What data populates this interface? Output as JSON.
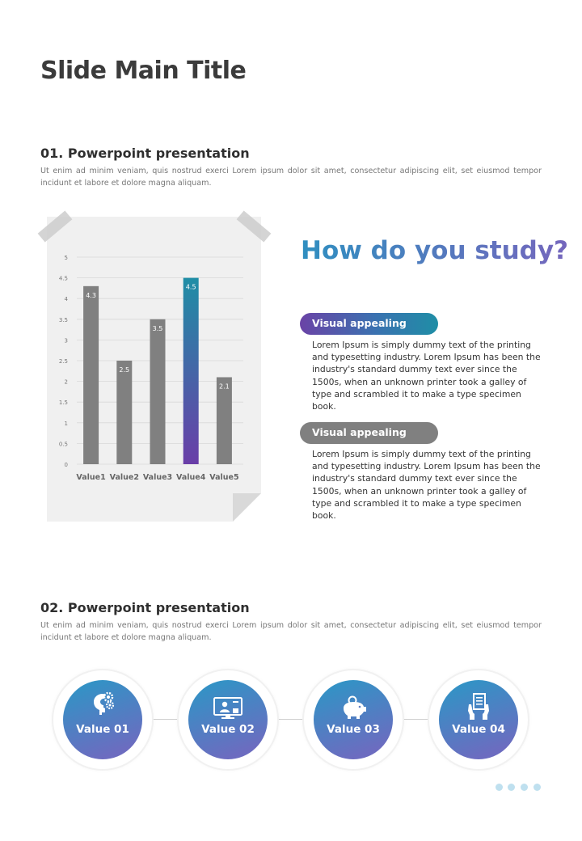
{
  "slide": {
    "title": "Slide Main Title"
  },
  "section1": {
    "title": "01. Powerpoint presentation",
    "body": "Ut enim ad minim veniam, quis nostrud exerci  Lorem ipsum dolor sit amet, consectetur adipiscing elit, set eiusmod tempor incidunt et labore et dolore magna aliquam."
  },
  "section2": {
    "title": "02. Powerpoint presentation",
    "body": "Ut enim ad minim veniam, quis nostrud exerci  Lorem ipsum dolor sit amet, consectetur adipiscing elit, set eiusmod tempor incidunt et labore et dolore magna aliquam."
  },
  "chart_data": {
    "type": "bar",
    "categories": [
      "Value1",
      "Value2",
      "Value3",
      "Value4",
      "Value5"
    ],
    "values": [
      4.3,
      2.5,
      3.5,
      4.5,
      2.1
    ],
    "data_labels": [
      "4.3",
      "2.5",
      "3.5",
      "4.5",
      "2.1"
    ],
    "highlight_index": 3,
    "ylim": [
      0,
      5
    ],
    "yticks": [
      0,
      0.5,
      1,
      1.5,
      2,
      2.5,
      3,
      3.5,
      4,
      4.5,
      5
    ],
    "ytick_labels": [
      "0",
      "0.5",
      "1",
      "1.5",
      "2",
      "2.5",
      "3",
      "3.5",
      "4",
      "4.5",
      "5"
    ],
    "title": "",
    "xlabel": "",
    "ylabel": "",
    "colors": {
      "bar": "#808080",
      "highlight_top": "#1f8ea6",
      "highlight_bottom": "#6a3ea8",
      "grid": "#d8d8d8"
    }
  },
  "study": {
    "heading": "How do you study?",
    "items": [
      {
        "pill": "Visual appealing",
        "text": "Lorem Ipsum is simply dummy text of the printing and typesetting industry. Lorem Ipsum has been the industry's standard dummy text ever since the 1500s, when an unknown printer took a galley of type and scrambled it to make a type specimen book."
      },
      {
        "pill": "Visual appealing",
        "text": "Lorem Ipsum is simply dummy text of the printing and typesetting industry. Lorem Ipsum has been the industry's standard dummy text ever since the 1500s, when an unknown printer took a galley of type and scrambled it to make a type specimen book."
      }
    ]
  },
  "process": {
    "steps": [
      {
        "label": "Value 01",
        "icon": "head-gears-icon"
      },
      {
        "label": "Value 02",
        "icon": "monitor-user-icon"
      },
      {
        "label": "Value 03",
        "icon": "piggy-bank-icon"
      },
      {
        "label": "Value 04",
        "icon": "hands-document-icon"
      }
    ]
  },
  "pagination": {
    "count": 4
  }
}
